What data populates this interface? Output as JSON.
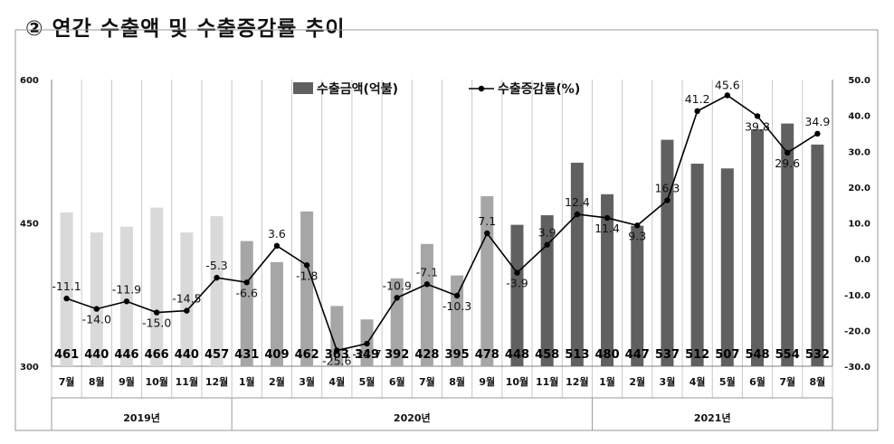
{
  "title": "② 연간 수출액 및 수출증감률 추이",
  "chart_data": {
    "type": "bar",
    "legend": {
      "bar_label": "수출금액(억불)",
      "line_label": "수출증감률(%)",
      "placement": "top-center"
    },
    "categories": [
      "7월",
      "8월",
      "9월",
      "10월",
      "11월",
      "12월",
      "1월",
      "2월",
      "3월",
      "4월",
      "5월",
      "6월",
      "7월",
      "8월",
      "9월",
      "10월",
      "11월",
      "12월",
      "1월",
      "2월",
      "3월",
      "4월",
      "5월",
      "6월",
      "7월",
      "8월"
    ],
    "year_groups": [
      {
        "label": "2019년",
        "count": 6
      },
      {
        "label": "2020년",
        "count": 12
      },
      {
        "label": "2021년",
        "count": 8
      }
    ],
    "series": [
      {
        "name": "수출금액(억불)",
        "type": "bar",
        "axis": "left",
        "values": [
          461,
          440,
          446,
          466,
          440,
          457,
          431,
          409,
          462,
          363,
          349,
          392,
          428,
          395,
          478,
          448,
          458,
          513,
          480,
          447,
          537,
          512,
          507,
          548,
          554,
          532
        ],
        "value_labels": [
          "461",
          "440",
          "446",
          "466",
          "440",
          "457",
          "431",
          "409",
          "462",
          "363",
          "349",
          "392",
          "428",
          "395",
          "478",
          "448",
          "458",
          "513",
          "480",
          "447",
          "537",
          "512",
          "507",
          "548",
          "554",
          "532"
        ]
      },
      {
        "name": "수출증감률(%)",
        "type": "line",
        "axis": "right",
        "values": [
          -11.1,
          -14.0,
          -11.9,
          -15.0,
          -14.5,
          -5.3,
          -6.6,
          3.6,
          -1.8,
          -25.6,
          -23.7,
          -10.9,
          -7.1,
          -10.3,
          7.1,
          -3.9,
          3.9,
          12.4,
          11.4,
          9.3,
          16.3,
          41.2,
          45.6,
          39.8,
          29.6,
          34.9
        ],
        "value_labels": [
          "-11.1",
          "-14.0",
          "-11.9",
          "-15.0",
          "-14.5",
          "-5.3",
          "-6.6",
          "3.6",
          "-1.8",
          "-25.6",
          "-23.7",
          "-10.9",
          "-7.1",
          "-10.3",
          "7.1",
          "-3.9",
          "3.9",
          "12.4",
          "11.4",
          "9.3",
          "16.3",
          "41.2",
          "45.6",
          "39.8",
          "29.6",
          "34.9"
        ]
      }
    ],
    "y_left": {
      "ylim": [
        300,
        600
      ],
      "ticks": [
        "300",
        "450",
        "600"
      ],
      "tick_values": [
        300,
        450,
        600
      ]
    },
    "y_right": {
      "ylim": [
        -30,
        50
      ],
      "ticks": [
        "-30.0",
        "-20.0",
        "-10.0",
        "0.0",
        "10.0",
        "20.0",
        "30.0",
        "40.0",
        "50.0"
      ],
      "tick_values": [
        -30,
        -20,
        -10,
        0,
        10,
        20,
        30,
        40,
        50
      ]
    },
    "bar_colors": {
      "2019": "#d9d9d9",
      "2020_first": "#a6a6a6",
      "2020_late": "#606060",
      "2021": "#606060"
    },
    "line_color": "#000000",
    "grid": true
  }
}
